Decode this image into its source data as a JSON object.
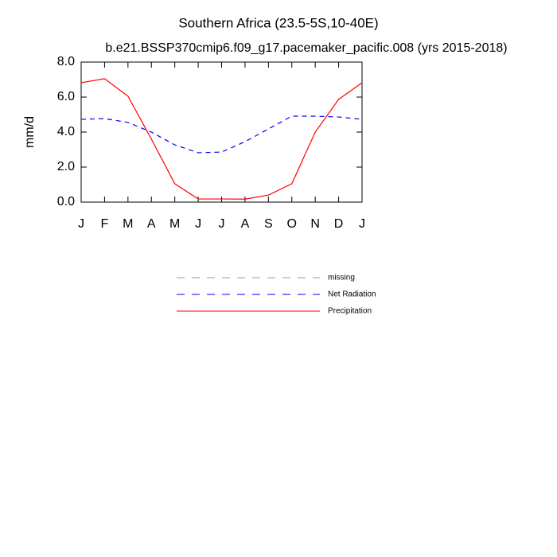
{
  "chart_data": {
    "type": "line",
    "title": "Southern Africa (23.5-5S,10-40E)",
    "subtitle": "b.e21.BSSP370cmip6.f09_g17.pacemaker_pacific.008 (yrs 2015-2018)",
    "y_label": "mm/d",
    "categories": [
      "J",
      "F",
      "M",
      "A",
      "M",
      "J",
      "J",
      "A",
      "S",
      "O",
      "N",
      "D",
      "J"
    ],
    "series": [
      {
        "name": "missing",
        "color": "#999999",
        "dash": true,
        "values": [
          null,
          null,
          null,
          null,
          null,
          null,
          null,
          null,
          null,
          null,
          null,
          null,
          null
        ]
      },
      {
        "name": "Net Radiation",
        "color": "#0000ff",
        "dash": true,
        "values": [
          4.73,
          4.77,
          4.55,
          4.0,
          3.27,
          2.82,
          2.86,
          3.45,
          4.18,
          4.91,
          4.91,
          4.86,
          4.73
        ]
      },
      {
        "name": "Precipitation",
        "color": "#ff0000",
        "dash": false,
        "values": [
          6.82,
          7.05,
          6.05,
          3.6,
          1.05,
          0.18,
          0.18,
          0.17,
          0.4,
          1.05,
          4.0,
          5.87,
          6.82
        ]
      }
    ],
    "ylim": [
      0,
      8
    ],
    "yticks": [
      {
        "value": 0,
        "label": "0.0"
      },
      {
        "value": 2,
        "label": "2.0"
      },
      {
        "value": 4,
        "label": "4.0"
      },
      {
        "value": 6,
        "label": "6.0"
      },
      {
        "value": 8,
        "label": "8.0"
      }
    ],
    "grid": false
  }
}
